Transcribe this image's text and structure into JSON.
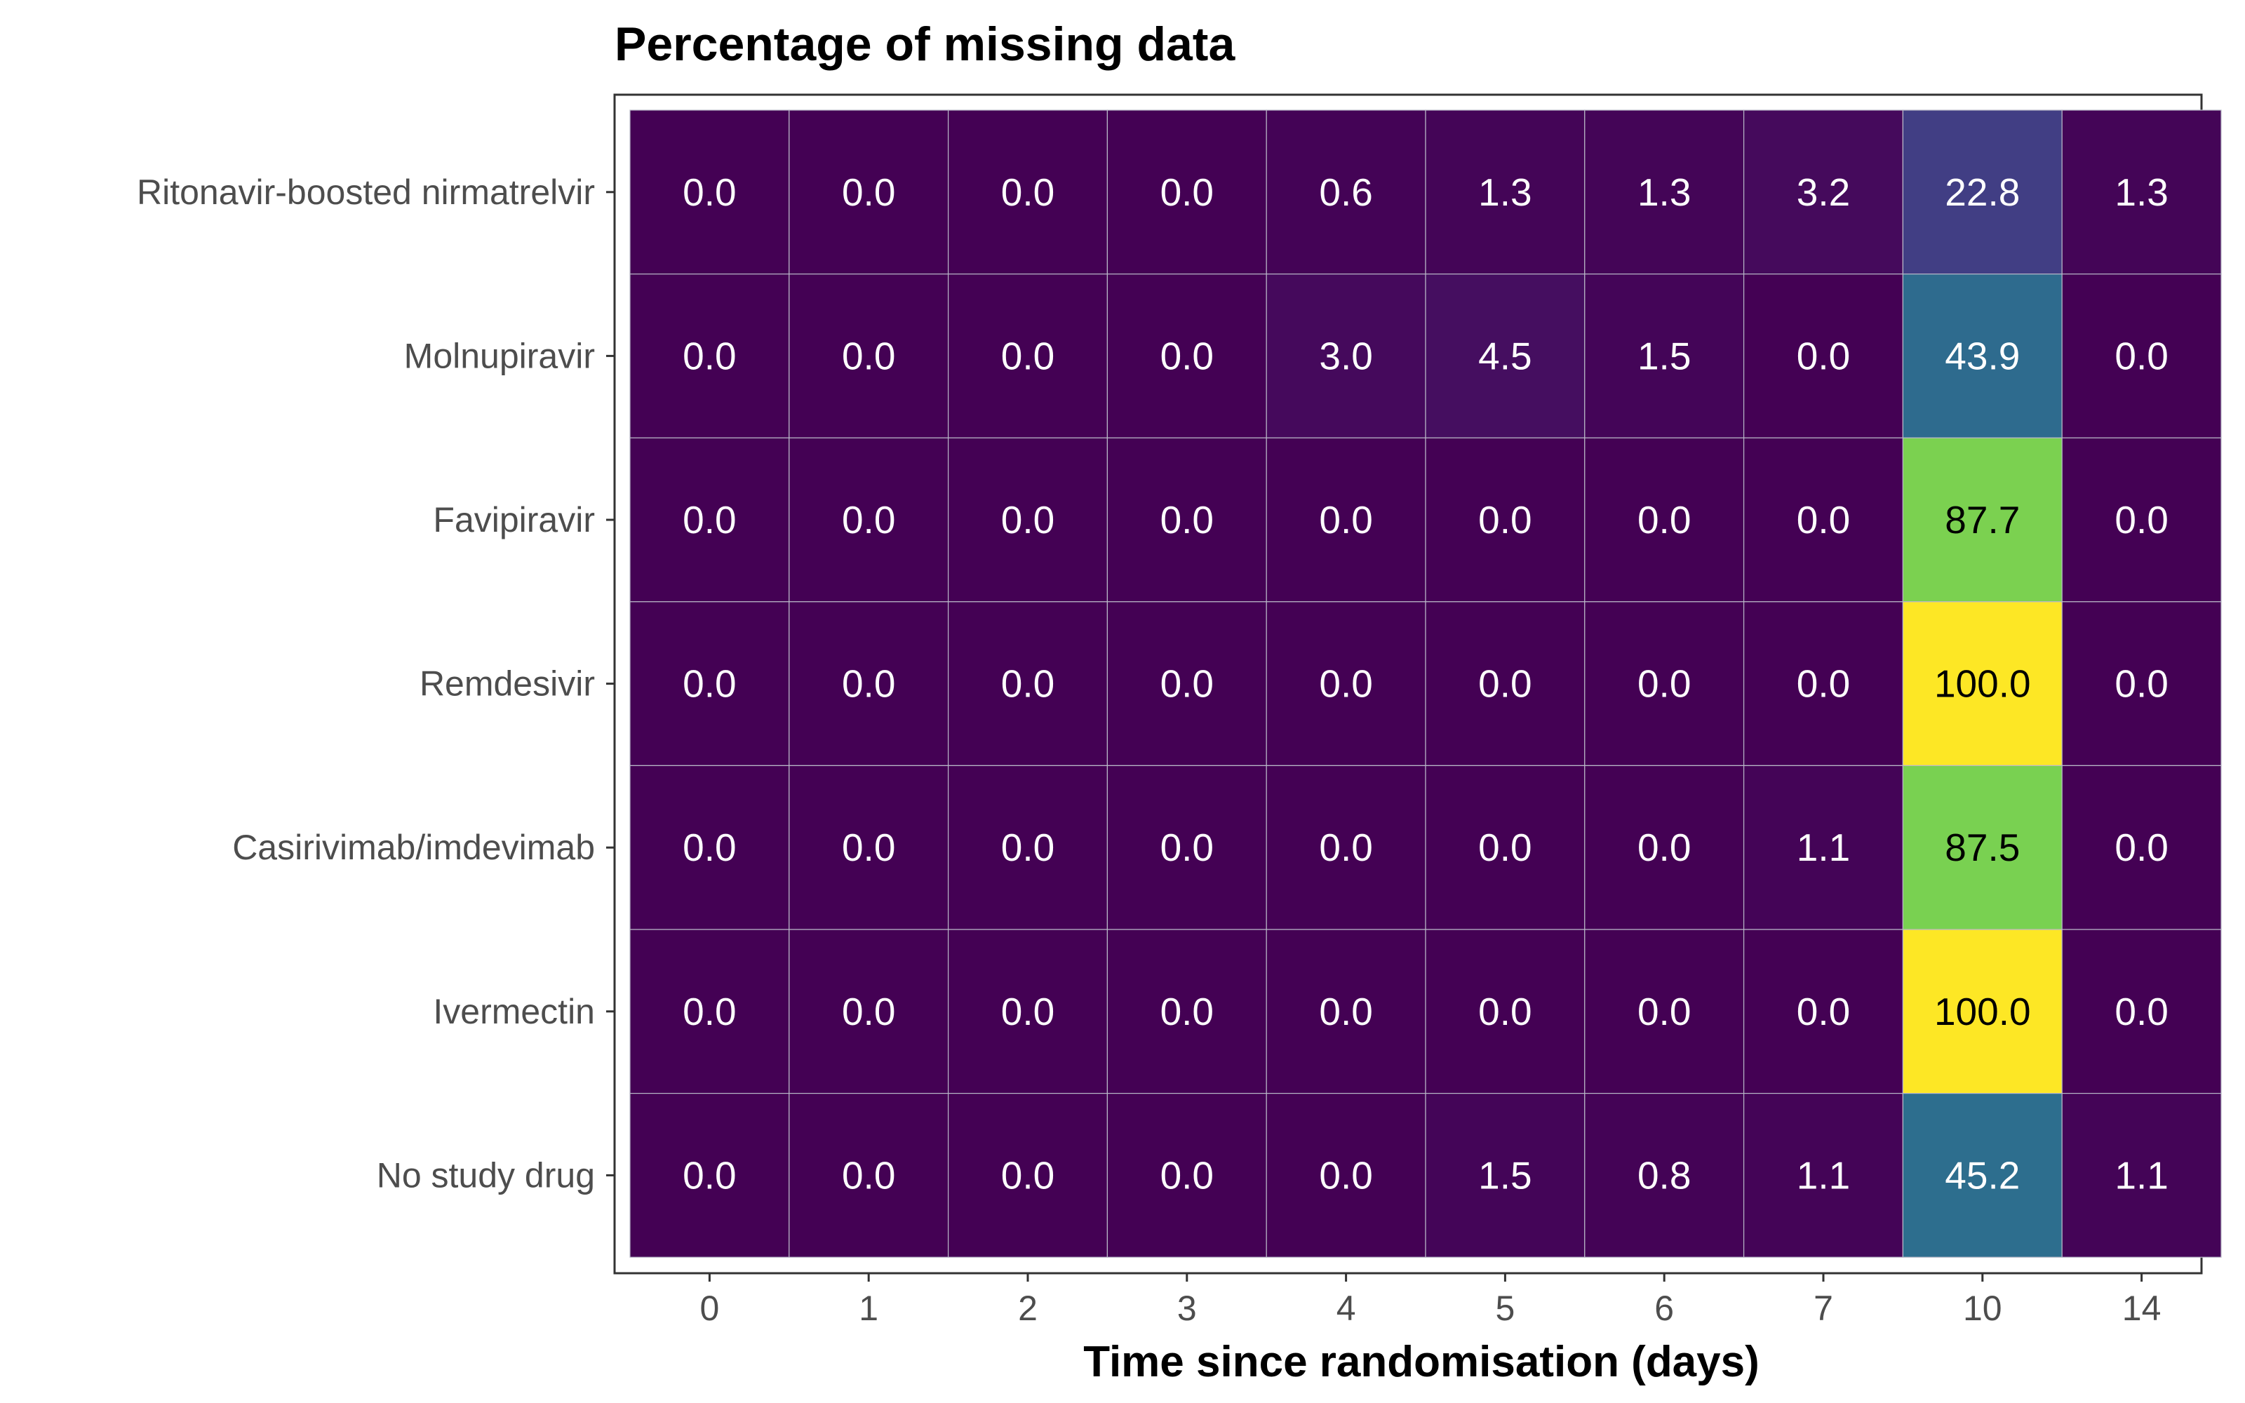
{
  "chart_data": {
    "type": "heatmap",
    "title": "Percentage of missing data",
    "xlabel": "Time since randomisation (days)",
    "ylabel": "",
    "x": [
      "0",
      "1",
      "2",
      "3",
      "4",
      "5",
      "6",
      "7",
      "10",
      "14"
    ],
    "y": [
      "Ritonavir-boosted nirmatrelvir",
      "Molnupiravir",
      "Favipiravir",
      "Remdesivir",
      "Casirivimab/imdevimab",
      "Ivermectin",
      "No study drug"
    ],
    "values": [
      [
        0.0,
        0.0,
        0.0,
        0.0,
        0.6,
        1.3,
        1.3,
        3.2,
        22.8,
        1.3
      ],
      [
        0.0,
        0.0,
        0.0,
        0.0,
        3.0,
        4.5,
        1.5,
        0.0,
        43.9,
        0.0
      ],
      [
        0.0,
        0.0,
        0.0,
        0.0,
        0.0,
        0.0,
        0.0,
        0.0,
        87.7,
        0.0
      ],
      [
        0.0,
        0.0,
        0.0,
        0.0,
        0.0,
        0.0,
        0.0,
        0.0,
        100.0,
        0.0
      ],
      [
        0.0,
        0.0,
        0.0,
        0.0,
        0.0,
        0.0,
        0.0,
        1.1,
        87.5,
        0.0
      ],
      [
        0.0,
        0.0,
        0.0,
        0.0,
        0.0,
        0.0,
        0.0,
        0.0,
        100.0,
        0.0
      ],
      [
        0.0,
        0.0,
        0.0,
        0.0,
        0.0,
        1.5,
        0.8,
        1.1,
        45.2,
        1.1
      ]
    ],
    "color_scale": "viridis",
    "value_range": [
      0,
      100
    ],
    "grid": true,
    "legend": "none"
  }
}
